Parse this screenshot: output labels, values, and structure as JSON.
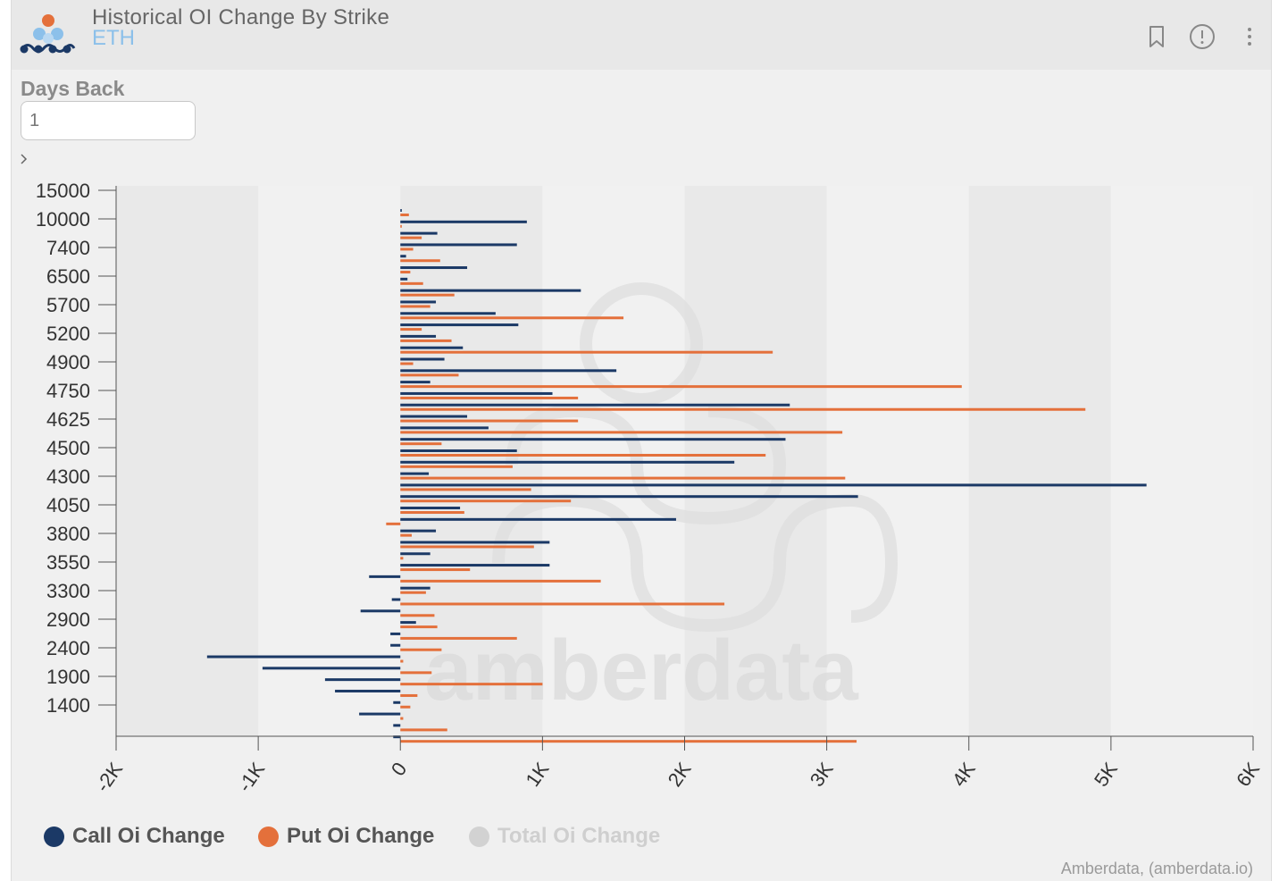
{
  "header": {
    "title": "Historical OI Change By Strike",
    "subtitle": "ETH",
    "icons": [
      "bookmark-icon",
      "info-icon",
      "more-vertical-icon"
    ]
  },
  "controls": {
    "days_back_label": "Days Back",
    "days_back_value": "1"
  },
  "legend": [
    {
      "label": "Call Oi Change",
      "color": "#1b3966",
      "active": true
    },
    {
      "label": "Put Oi Change",
      "color": "#e4703b",
      "active": true
    },
    {
      "label": "Total Oi Change",
      "color": "#d2d2d2",
      "active": false
    }
  ],
  "watermark": "amberdata",
  "credit": "Amberdata, (amberdata.io)",
  "chart_data": {
    "type": "bar",
    "orientation": "horizontal",
    "xlim": [
      -2000,
      6000
    ],
    "x_ticks": [
      "-2K",
      "-1K",
      "0",
      "1K",
      "2K",
      "3K",
      "4K",
      "5K",
      "6K"
    ],
    "y_tick_labels": [
      "15000",
      "10000",
      "7400",
      "6500",
      "5700",
      "5200",
      "4900",
      "4750",
      "4625",
      "4500",
      "4300",
      "4050",
      "3800",
      "3550",
      "3300",
      "2900",
      "2400",
      "1900",
      "1400"
    ],
    "grid": "alternating vertical bands",
    "legend_position": "bottom",
    "series": [
      {
        "name": "Call Oi Change",
        "color": "#1b3966",
        "values": [
          10,
          890,
          260,
          820,
          40,
          470,
          50,
          1270,
          250,
          670,
          830,
          250,
          440,
          310,
          1520,
          210,
          1070,
          2740,
          470,
          620,
          2710,
          820,
          2350,
          200,
          5250,
          3220,
          420,
          1940,
          250,
          1050,
          210,
          1050,
          -220,
          210,
          -60,
          -280,
          110,
          -70,
          -70,
          -1360,
          -970,
          -530,
          -460,
          -50,
          -290,
          -50,
          -50
        ]
      },
      {
        "name": "Put Oi Change",
        "color": "#e4703b",
        "values": [
          60,
          10,
          150,
          90,
          280,
          70,
          160,
          380,
          210,
          1570,
          150,
          360,
          2620,
          90,
          410,
          3950,
          1250,
          4820,
          1250,
          3110,
          290,
          2570,
          790,
          3130,
          920,
          1200,
          450,
          -100,
          80,
          940,
          20,
          490,
          1410,
          180,
          2280,
          240,
          260,
          820,
          290,
          20,
          220,
          1000,
          120,
          70,
          20,
          330,
          3210
        ]
      }
    ]
  }
}
